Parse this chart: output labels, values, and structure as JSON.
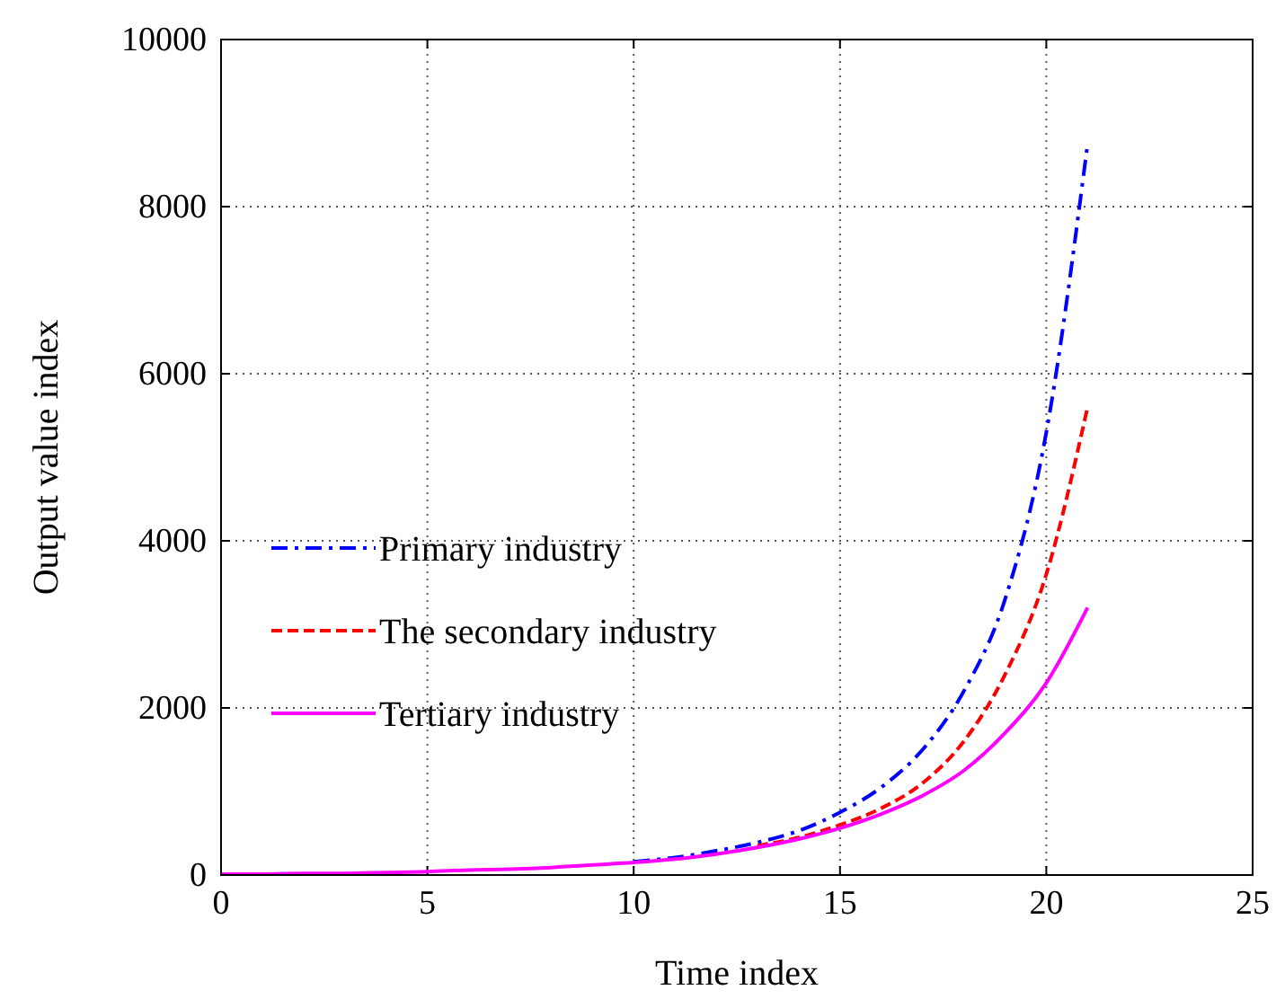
{
  "chart_data": {
    "type": "line",
    "xlabel": "Time index",
    "ylabel": "Output value index",
    "x": [
      0,
      1,
      2,
      3,
      4,
      5,
      6,
      7,
      8,
      9,
      10,
      11,
      12,
      13,
      14,
      15,
      16,
      17,
      18,
      19,
      20,
      21
    ],
    "series": [
      {
        "name": "Primary industry",
        "color": "#0000ff",
        "line_style": "dashdot",
        "values": [
          null,
          null,
          null,
          null,
          null,
          null,
          null,
          null,
          null,
          null,
          160,
          210,
          290,
          390,
          530,
          750,
          1050,
          1500,
          2200,
          3300,
          5300,
          8750
        ]
      },
      {
        "name": "The secondary industry",
        "color": "#ff0000",
        "line_style": "dashed",
        "values": [
          null,
          null,
          null,
          null,
          null,
          null,
          null,
          null,
          null,
          null,
          null,
          null,
          null,
          350,
          450,
          600,
          800,
          1100,
          1600,
          2400,
          3600,
          5600
        ]
      },
      {
        "name": "Tertiary industry",
        "color": "#ff00ff",
        "line_style": "solid",
        "values": [
          10,
          10,
          20,
          20,
          30,
          40,
          60,
          70,
          90,
          120,
          150,
          190,
          250,
          330,
          430,
          560,
          730,
          950,
          1250,
          1700,
          2300,
          3200
        ]
      }
    ],
    "xlim": [
      0,
      25
    ],
    "xticks": [
      0,
      5,
      10,
      15,
      20,
      25
    ],
    "ylim": [
      0,
      10000
    ],
    "yticks": [
      0,
      2000,
      4000,
      6000,
      8000,
      10000
    ],
    "grid": true,
    "legend": "left",
    "marker": "none"
  }
}
